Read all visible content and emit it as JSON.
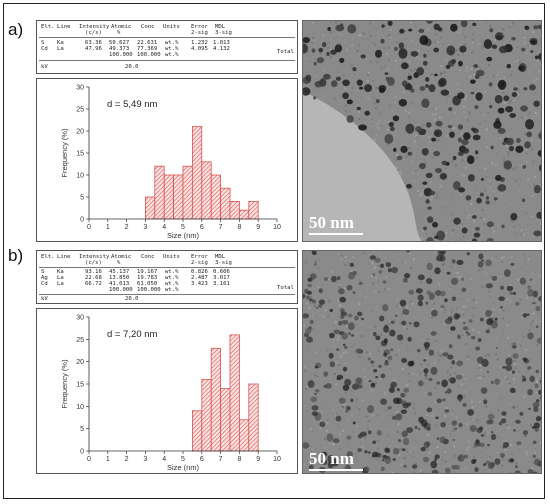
{
  "panels": [
    {
      "label": "a)",
      "eds": {
        "headers": [
          "Elt.",
          "Line",
          "Intensity",
          "Atomic",
          "Conc",
          "Units",
          "Error",
          "MDL"
        ],
        "subheaders": [
          "(c/s)",
          "%",
          "2-sig",
          "3-sig"
        ],
        "rows": [
          [
            "S",
            "Ka",
            "63.36",
            "50.627",
            "22.631",
            "wt.%",
            "1.232",
            "1.013"
          ],
          [
            "Cd",
            "La",
            "47.96",
            "49.373",
            "77.369",
            "wt.%",
            "4.095",
            "4.132"
          ]
        ],
        "total_values": [
          "100.000",
          "100.000",
          "wt.%"
        ],
        "total_label": "Total",
        "kv_label": "kV",
        "kv_value": "20.0"
      },
      "annotation": "d = 5,49 nm",
      "scalebar": "50 nm"
    },
    {
      "label": "b)",
      "eds": {
        "headers": [
          "Elt.",
          "Line",
          "Intensity",
          "Atomic",
          "Conc",
          "Units",
          "Error",
          "MDL"
        ],
        "subheaders": [
          "(c/s)",
          "%",
          "2-sig",
          "3-sig"
        ],
        "rows": [
          [
            "S",
            "Ka",
            "93.16",
            "45.137",
            "19.167",
            "wt.%",
            "0.826",
            "0.606"
          ],
          [
            "Ag",
            "La",
            "22.68",
            "13.850",
            "19.783",
            "wt.%",
            "2.487",
            "3.017"
          ],
          [
            "Cd",
            "La",
            "66.72",
            "41.013",
            "61.050",
            "wt.%",
            "3.423",
            "3.161"
          ]
        ],
        "total_values": [
          "100.000",
          "100.000",
          "wt.%"
        ],
        "total_label": "Total",
        "kv_label": "kV",
        "kv_value": "20.0"
      },
      "annotation": "d = 7,20 nm",
      "scalebar": "50 nm"
    }
  ],
  "chart_data": [
    {
      "type": "bar",
      "x": [
        3.25,
        3.75,
        4.25,
        4.75,
        5.25,
        5.75,
        6.25,
        6.75,
        7.25,
        7.75,
        8.25,
        8.75
      ],
      "values": [
        5,
        12,
        10,
        10,
        12,
        21,
        13,
        10,
        7,
        4,
        2,
        4
      ],
      "xlabel": "Size (nm)",
      "ylabel": "Frequency (%)",
      "xlim": [
        0,
        10
      ],
      "ylim": [
        0,
        30
      ],
      "xticks": [
        "0",
        "1",
        "2",
        "3",
        "4",
        "5",
        "6",
        "7",
        "8",
        "9",
        "10"
      ],
      "yticks": [
        "0",
        "5",
        "10",
        "15",
        "20",
        "25",
        "30"
      ],
      "bar_color": "#d9534f",
      "grid": false
    },
    {
      "type": "bar",
      "x": [
        5.75,
        6.25,
        6.75,
        7.25,
        7.75,
        8.25,
        8.75
      ],
      "values": [
        9,
        16,
        23,
        14,
        26,
        7,
        15
      ],
      "xlabel": "Size (nm)",
      "ylabel": "Frequency (%)",
      "xlim": [
        0,
        10
      ],
      "ylim": [
        0,
        30
      ],
      "xticks": [
        "0",
        "1",
        "2",
        "3",
        "4",
        "5",
        "6",
        "7",
        "8",
        "9",
        "10"
      ],
      "yticks": [
        "0",
        "5",
        "10",
        "15",
        "20",
        "25",
        "30"
      ],
      "bar_color": "#d9534f",
      "grid": false
    }
  ]
}
